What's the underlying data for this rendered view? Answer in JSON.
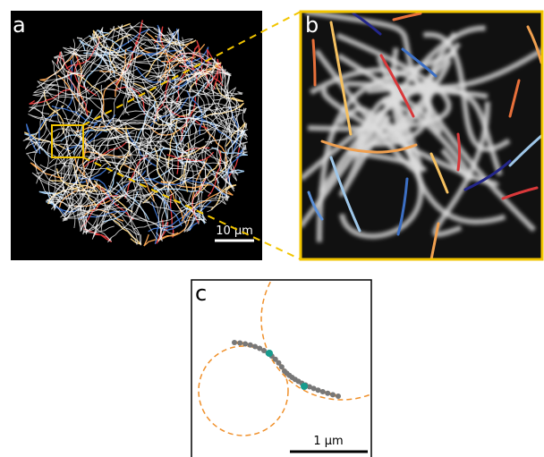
{
  "panels": {
    "a": {
      "label": "a",
      "scale_bar": "10 µm"
    },
    "b": {
      "label": "b"
    },
    "c": {
      "label": "c",
      "scale_bar": "1 µm"
    }
  }
}
